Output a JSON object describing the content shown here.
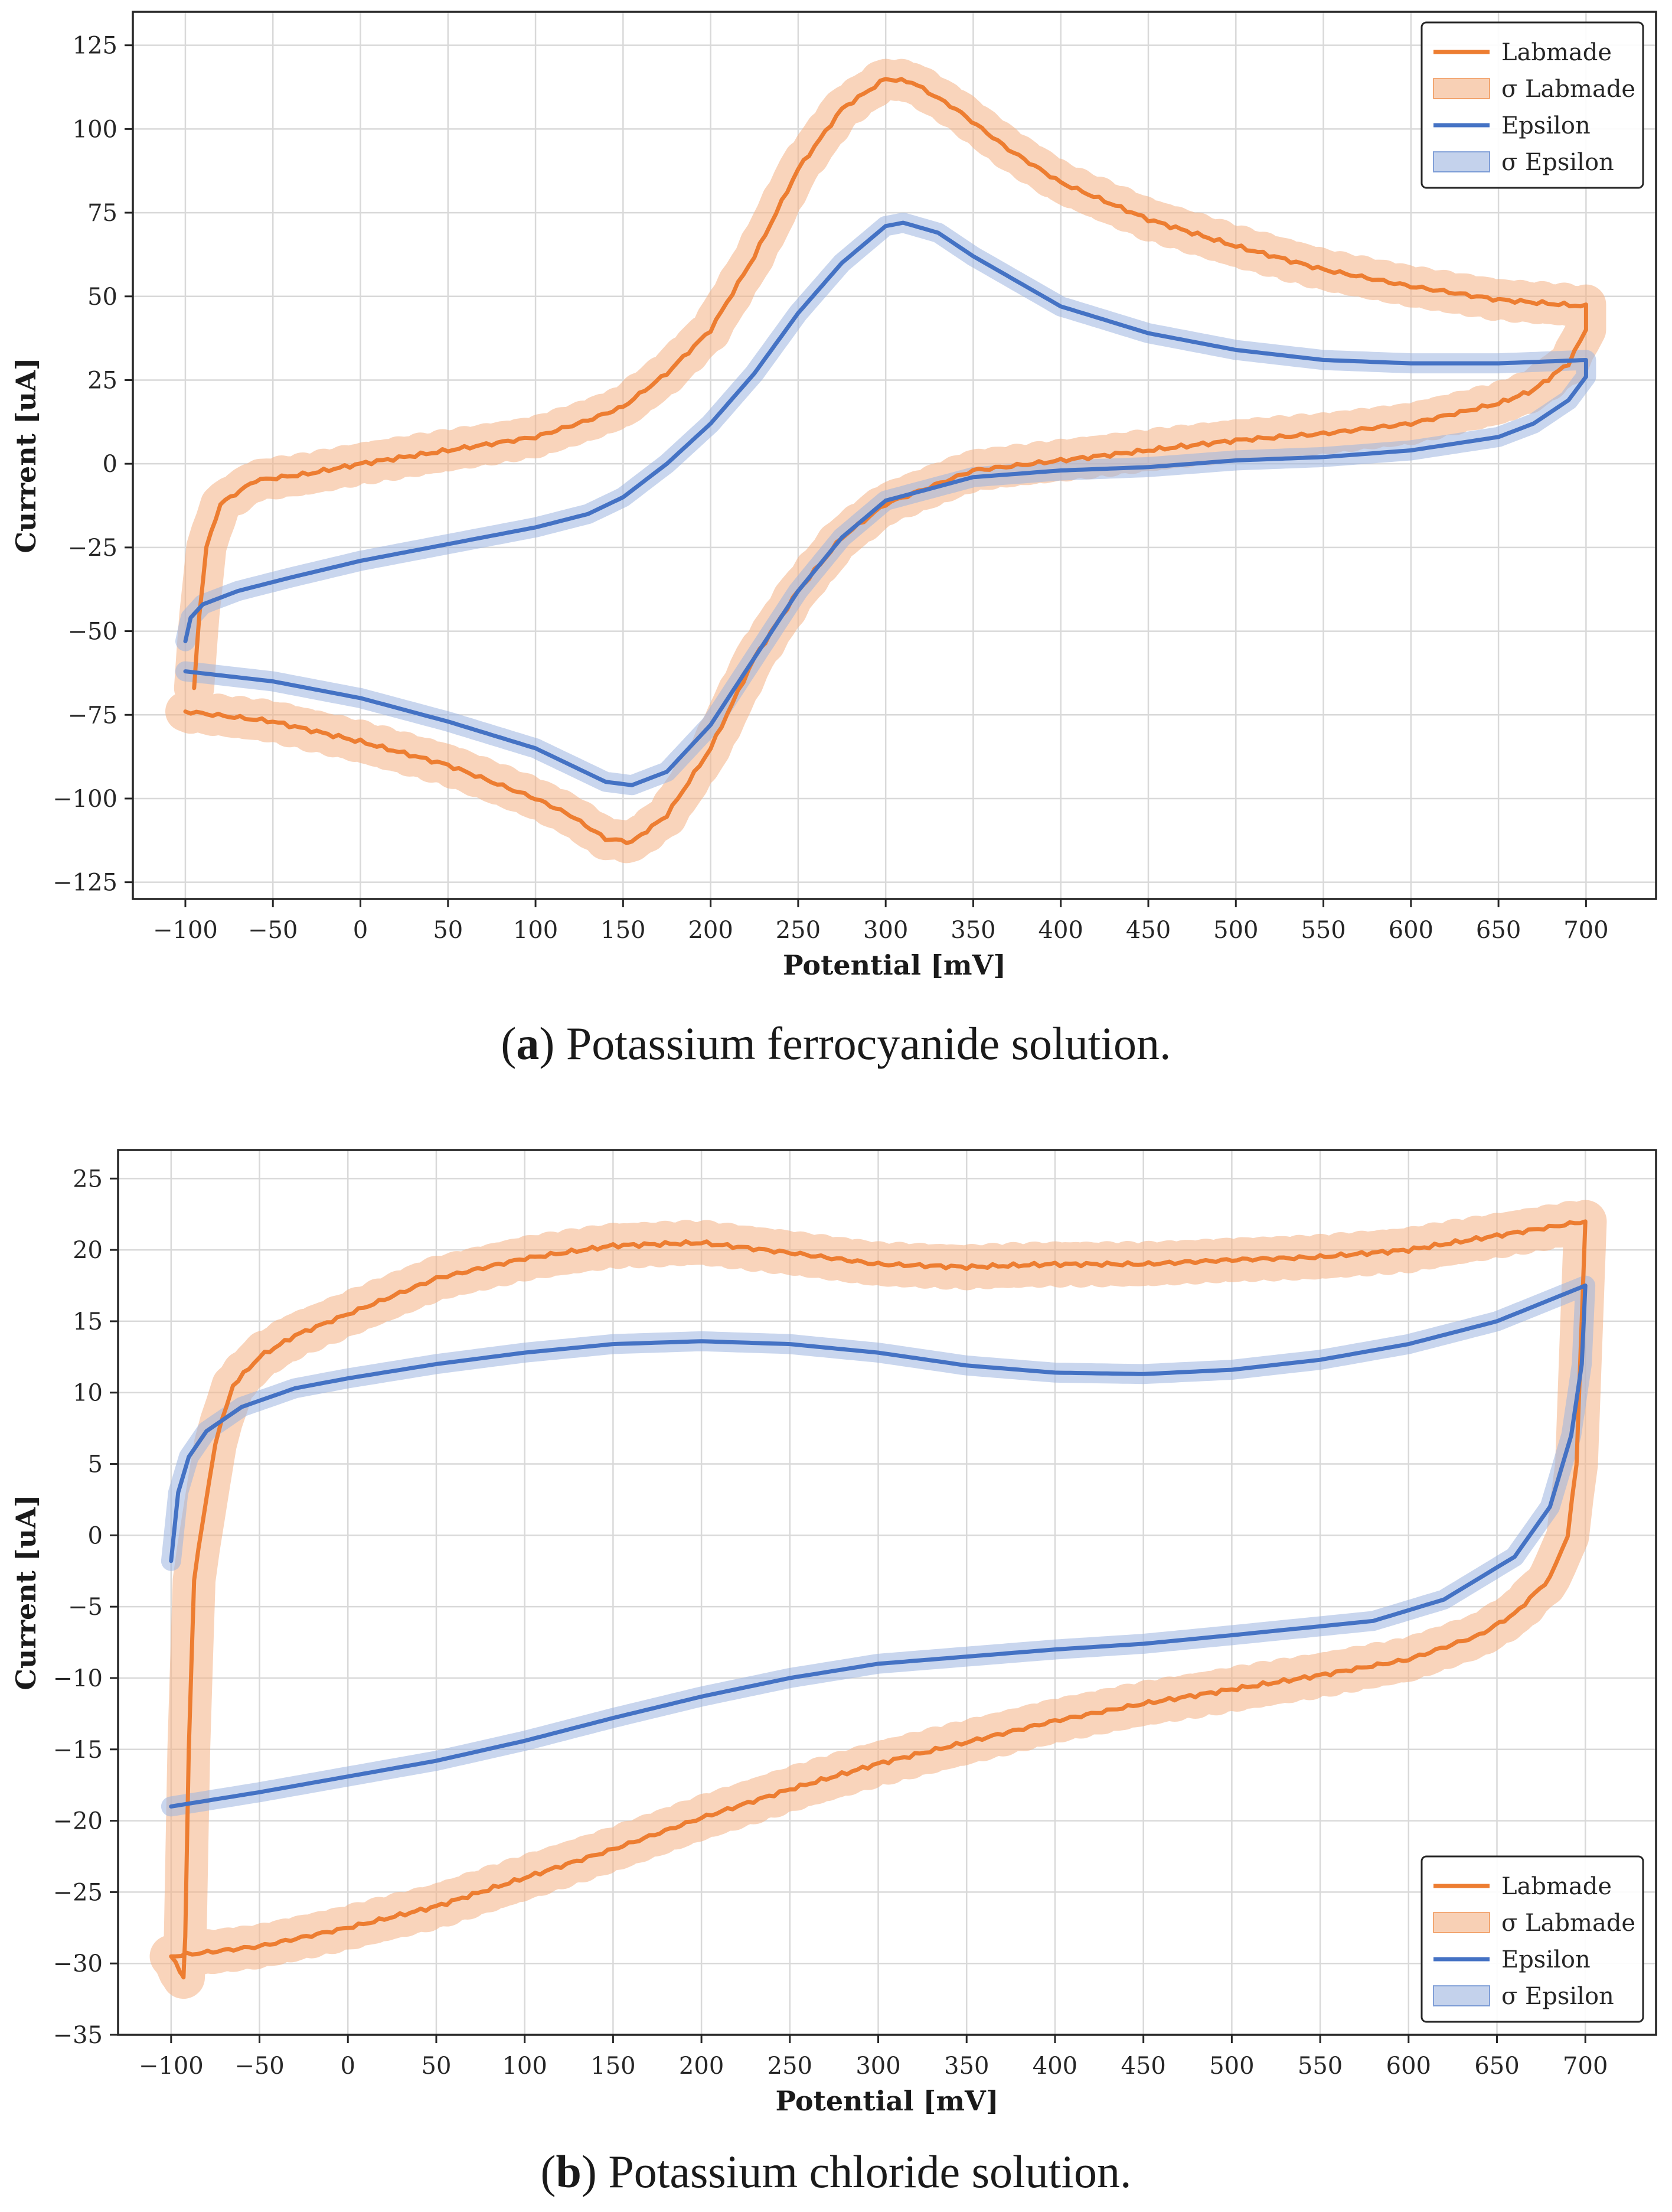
{
  "figure": {
    "caption_a": {
      "letter": "a",
      "text": " Potassium ferrocyanide solution.",
      "open": "(",
      "close": ")"
    },
    "caption_b": {
      "letter": "b",
      "text": " Potassium chloride solution.",
      "open": "(",
      "close": ")"
    }
  },
  "colors": {
    "labmade": "#ed7d31",
    "epsilon": "#4472c4",
    "labmade_band": "#f4b183",
    "epsilon_band": "#9db4e0"
  },
  "chart_data": [
    {
      "id": "a",
      "type": "line",
      "xlabel": "Potential [mV]",
      "ylabel": "Current [uA]",
      "xlim": [
        -130,
        740
      ],
      "ylim": [
        -130,
        135
      ],
      "xticks": [
        -100,
        -50,
        0,
        50,
        100,
        150,
        200,
        250,
        300,
        350,
        400,
        450,
        500,
        550,
        600,
        650,
        700
      ],
      "yticks": [
        -125,
        -100,
        -75,
        -50,
        -25,
        0,
        25,
        50,
        75,
        100,
        125
      ],
      "legend_position": "top-right",
      "legend": [
        "Labmade",
        "σ Labmade",
        "Epsilon",
        "σ Epsilon"
      ],
      "series": [
        {
          "name": "Labmade",
          "sigma": 6,
          "points": [
            [
              -95,
              -67
            ],
            [
              -92,
              -45
            ],
            [
              -88,
              -25
            ],
            [
              -80,
              -12
            ],
            [
              -60,
              -5
            ],
            [
              -30,
              -3
            ],
            [
              0,
              0
            ],
            [
              50,
              4
            ],
            [
              100,
              8
            ],
            [
              130,
              13
            ],
            [
              150,
              17
            ],
            [
              175,
              27
            ],
            [
              200,
              40
            ],
            [
              225,
              62
            ],
            [
              250,
              88
            ],
            [
              275,
              106
            ],
            [
              300,
              115
            ],
            [
              315,
              114
            ],
            [
              340,
              106
            ],
            [
              370,
              94
            ],
            [
              400,
              84
            ],
            [
              450,
              73
            ],
            [
              500,
              65
            ],
            [
              550,
              58
            ],
            [
              600,
              53
            ],
            [
              650,
              49
            ],
            [
              700,
              47
            ],
            [
              700,
              40
            ],
            [
              690,
              30
            ],
            [
              670,
              22
            ],
            [
              650,
              18
            ],
            [
              600,
              12
            ],
            [
              550,
              9
            ],
            [
              500,
              7
            ],
            [
              450,
              4
            ],
            [
              400,
              1
            ],
            [
              350,
              -2
            ],
            [
              300,
              -12
            ],
            [
              275,
              -22
            ],
            [
              250,
              -38
            ],
            [
              225,
              -58
            ],
            [
              200,
              -85
            ],
            [
              175,
              -105
            ],
            [
              155,
              -113
            ],
            [
              140,
              -112
            ],
            [
              120,
              -105
            ],
            [
              100,
              -100
            ],
            [
              50,
              -90
            ],
            [
              0,
              -83
            ],
            [
              -50,
              -77
            ],
            [
              -100,
              -74
            ]
          ]
        },
        {
          "name": "Epsilon",
          "sigma": 3,
          "points": [
            [
              -100,
              -53
            ],
            [
              -97,
              -46
            ],
            [
              -90,
              -42
            ],
            [
              -70,
              -38
            ],
            [
              -40,
              -34
            ],
            [
              0,
              -29
            ],
            [
              50,
              -24
            ],
            [
              100,
              -19
            ],
            [
              130,
              -15
            ],
            [
              150,
              -10
            ],
            [
              175,
              0
            ],
            [
              200,
              12
            ],
            [
              225,
              27
            ],
            [
              250,
              45
            ],
            [
              275,
              60
            ],
            [
              300,
              71
            ],
            [
              310,
              72
            ],
            [
              330,
              69
            ],
            [
              350,
              62
            ],
            [
              400,
              47
            ],
            [
              450,
              39
            ],
            [
              500,
              34
            ],
            [
              550,
              31
            ],
            [
              600,
              30
            ],
            [
              650,
              30
            ],
            [
              700,
              31
            ],
            [
              700,
              26
            ],
            [
              690,
              19
            ],
            [
              670,
              12
            ],
            [
              650,
              8
            ],
            [
              600,
              4
            ],
            [
              550,
              2
            ],
            [
              500,
              1
            ],
            [
              450,
              -1
            ],
            [
              400,
              -2
            ],
            [
              350,
              -4
            ],
            [
              300,
              -11
            ],
            [
              275,
              -22
            ],
            [
              250,
              -38
            ],
            [
              225,
              -58
            ],
            [
              200,
              -78
            ],
            [
              175,
              -92
            ],
            [
              155,
              -96
            ],
            [
              140,
              -95
            ],
            [
              120,
              -90
            ],
            [
              100,
              -85
            ],
            [
              50,
              -77
            ],
            [
              0,
              -70
            ],
            [
              -50,
              -65
            ],
            [
              -100,
              -62
            ]
          ]
        }
      ]
    },
    {
      "id": "b",
      "type": "line",
      "xlabel": "Potential [mV]",
      "ylabel": "Current [uA]",
      "xlim": [
        -130,
        740
      ],
      "ylim": [
        -35,
        27
      ],
      "xticks": [
        -100,
        -50,
        0,
        50,
        100,
        150,
        200,
        250,
        300,
        350,
        400,
        450,
        500,
        550,
        600,
        650,
        700
      ],
      "yticks": [
        -35,
        -30,
        -25,
        -20,
        -15,
        -10,
        -5,
        0,
        5,
        10,
        15,
        20,
        25
      ],
      "legend_position": "bottom-right",
      "legend": [
        "Labmade",
        "σ Labmade",
        "Epsilon",
        "σ Epsilon"
      ],
      "series": [
        {
          "name": "Labmade",
          "sigma": 1.5,
          "points": [
            [
              700,
              22
            ],
            [
              650,
              21
            ],
            [
              600,
              20
            ],
            [
              550,
              19.5
            ],
            [
              500,
              19.3
            ],
            [
              450,
              19
            ],
            [
              400,
              19
            ],
            [
              350,
              18.8
            ],
            [
              300,
              19
            ],
            [
              250,
              19.8
            ],
            [
              200,
              20.5
            ],
            [
              150,
              20.3
            ],
            [
              100,
              19.4
            ],
            [
              50,
              18
            ],
            [
              0,
              15.5
            ],
            [
              -30,
              14
            ],
            [
              -50,
              12.5
            ],
            [
              -65,
              10.5
            ],
            [
              -75,
              6.5
            ],
            [
              -82,
              1
            ],
            [
              -87,
              -3
            ],
            [
              -90,
              -15
            ],
            [
              -92,
              -28
            ],
            [
              -93,
              -31
            ],
            [
              -95,
              -30.5
            ],
            [
              -100,
              -29.5
            ],
            [
              -50,
              -28.8
            ],
            [
              0,
              -27.5
            ],
            [
              50,
              -26
            ],
            [
              100,
              -24
            ],
            [
              150,
              -22
            ],
            [
              200,
              -19.8
            ],
            [
              250,
              -17.8
            ],
            [
              300,
              -16
            ],
            [
              350,
              -14.5
            ],
            [
              400,
              -13
            ],
            [
              450,
              -11.8
            ],
            [
              500,
              -10.8
            ],
            [
              550,
              -9.8
            ],
            [
              600,
              -8.7
            ],
            [
              640,
              -7
            ],
            [
              660,
              -5.5
            ],
            [
              680,
              -3
            ],
            [
              690,
              0
            ],
            [
              695,
              5
            ],
            [
              700,
              22
            ]
          ]
        },
        {
          "name": "Epsilon",
          "sigma": 0.7,
          "points": [
            [
              -100,
              -1.8
            ],
            [
              -96,
              3
            ],
            [
              -90,
              5.5
            ],
            [
              -80,
              7.3
            ],
            [
              -60,
              9
            ],
            [
              -30,
              10.3
            ],
            [
              0,
              11
            ],
            [
              50,
              12
            ],
            [
              100,
              12.8
            ],
            [
              150,
              13.4
            ],
            [
              200,
              13.6
            ],
            [
              250,
              13.4
            ],
            [
              300,
              12.8
            ],
            [
              350,
              11.9
            ],
            [
              400,
              11.4
            ],
            [
              450,
              11.3
            ],
            [
              500,
              11.6
            ],
            [
              550,
              12.3
            ],
            [
              600,
              13.4
            ],
            [
              650,
              15
            ],
            [
              700,
              17.5
            ],
            [
              698,
              12
            ],
            [
              692,
              7
            ],
            [
              680,
              2
            ],
            [
              660,
              -1.5
            ],
            [
              620,
              -4.5
            ],
            [
              580,
              -6
            ],
            [
              500,
              -7
            ],
            [
              450,
              -7.6
            ],
            [
              400,
              -8
            ],
            [
              350,
              -8.5
            ],
            [
              300,
              -9
            ],
            [
              250,
              -10
            ],
            [
              200,
              -11.3
            ],
            [
              150,
              -12.8
            ],
            [
              100,
              -14.4
            ],
            [
              50,
              -15.8
            ],
            [
              0,
              -16.9
            ],
            [
              -50,
              -18
            ],
            [
              -100,
              -19
            ]
          ]
        }
      ]
    }
  ]
}
